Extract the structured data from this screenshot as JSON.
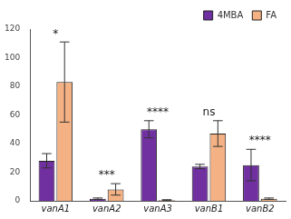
{
  "chart_data": {
    "type": "bar",
    "categories": [
      "vanA1",
      "vanA2",
      "vanA3",
      "vanB1",
      "vanB2"
    ],
    "series": [
      {
        "name": "4MBA",
        "color": "#7030a0",
        "values": [
          28,
          1.5,
          50,
          24,
          25
        ],
        "errors": [
          5,
          0.5,
          6,
          1.5,
          11
        ]
      },
      {
        "name": "FA",
        "color": "#f4b183",
        "values": [
          83,
          8,
          0.5,
          47,
          1.5
        ],
        "errors": [
          28,
          4,
          0.3,
          9,
          0.5
        ]
      }
    ],
    "ylim": [
      0,
      120
    ],
    "yticks": [
      0,
      20,
      40,
      60,
      80,
      100,
      120
    ],
    "grid": false,
    "legend": "upper right",
    "annotations": [
      {
        "category": "vanA1",
        "text": "*"
      },
      {
        "category": "vanA2",
        "text": "***"
      },
      {
        "category": "vanA3",
        "text": "****"
      },
      {
        "category": "vanB1",
        "text": "ns"
      },
      {
        "category": "vanB2",
        "text": "****"
      }
    ]
  }
}
